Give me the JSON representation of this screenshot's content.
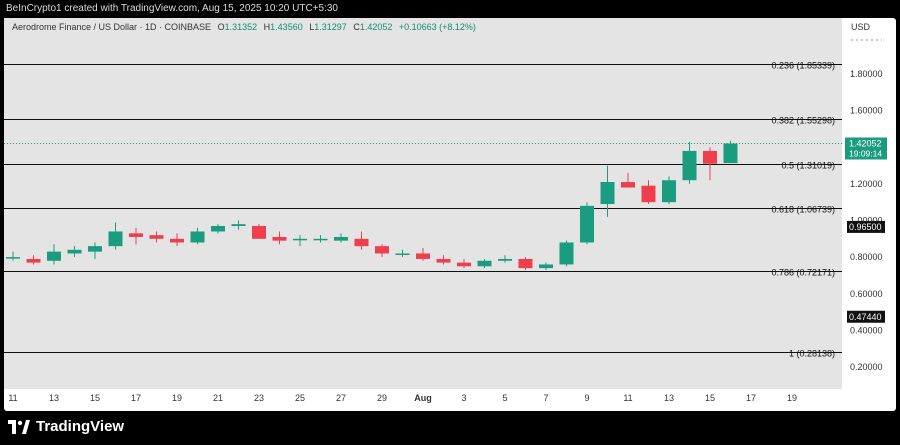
{
  "header": {
    "created_by": "BeInCrypto1 created with TradingView.com, Aug 15, 2025 10:20 UTC+5:30"
  },
  "legend": {
    "symbol": "Aerodrome Finance / US Dollar · 1D · COINBASE",
    "o_label": "O",
    "o_value": "1.31352",
    "h_label": "H",
    "h_value": "1.43560",
    "l_label": "L",
    "l_value": "1.31297",
    "c_label": "C",
    "c_value": "1.42052",
    "change": "+0.10663 (+8.12%)"
  },
  "axis": {
    "currency": "USD",
    "price_ticks": [
      "1.80000",
      "1.60000",
      "1.40000",
      "1.20000",
      "1.00000",
      "0.80000",
      "0.60000",
      "0.40000",
      "0.20000"
    ],
    "price_tick_values": [
      1.8,
      1.6,
      1.4,
      1.2,
      1.0,
      0.8,
      0.6,
      0.4,
      0.2
    ],
    "time_ticks": [
      "11",
      "13",
      "15",
      "17",
      "19",
      "21",
      "23",
      "25",
      "27",
      "29",
      "Aug",
      "3",
      "5",
      "7",
      "9",
      "11",
      "13",
      "15",
      "17",
      "19"
    ],
    "last_price_label": "1.42052",
    "countdown": "19:09:14",
    "hline_labels": [
      {
        "price": 0.965,
        "label": "0.96500"
      },
      {
        "price": 0.4744,
        "label": "0.47440"
      }
    ]
  },
  "fib_levels": [
    {
      "price": 1.85339,
      "label": "0.236 (1.85339)"
    },
    {
      "price": 1.55298,
      "label": "0.382 (1.55298)"
    },
    {
      "price": 1.31019,
      "label": "0.5 (1.31019)"
    },
    {
      "price": 1.06739,
      "label": "0.618 (1.06739)"
    },
    {
      "price": 0.72171,
      "label": "0.786 (0.72171)"
    },
    {
      "price": 0.28138,
      "label": "1 (0.28138)"
    }
  ],
  "colors": {
    "up": "#1a9c7e",
    "down": "#ef3f4f",
    "plot_bg": "#e4e4e4"
  },
  "chart_data": {
    "type": "candlestick",
    "candles": [
      {
        "o": 0.8,
        "h": 0.83,
        "l": 0.78,
        "c": 0.8
      },
      {
        "o": 0.79,
        "h": 0.81,
        "l": 0.76,
        "c": 0.77
      },
      {
        "o": 0.78,
        "h": 0.87,
        "l": 0.76,
        "c": 0.83
      },
      {
        "o": 0.82,
        "h": 0.86,
        "l": 0.8,
        "c": 0.84
      },
      {
        "o": 0.83,
        "h": 0.88,
        "l": 0.79,
        "c": 0.86
      },
      {
        "o": 0.86,
        "h": 0.99,
        "l": 0.84,
        "c": 0.94
      },
      {
        "o": 0.93,
        "h": 0.96,
        "l": 0.87,
        "c": 0.91
      },
      {
        "o": 0.92,
        "h": 0.94,
        "l": 0.88,
        "c": 0.9
      },
      {
        "o": 0.9,
        "h": 0.93,
        "l": 0.86,
        "c": 0.88
      },
      {
        "o": 0.88,
        "h": 0.96,
        "l": 0.87,
        "c": 0.94
      },
      {
        "o": 0.94,
        "h": 0.98,
        "l": 0.93,
        "c": 0.97
      },
      {
        "o": 0.97,
        "h": 1.0,
        "l": 0.95,
        "c": 0.98
      },
      {
        "o": 0.97,
        "h": 0.98,
        "l": 0.9,
        "c": 0.9
      },
      {
        "o": 0.91,
        "h": 0.94,
        "l": 0.87,
        "c": 0.89
      },
      {
        "o": 0.9,
        "h": 0.92,
        "l": 0.86,
        "c": 0.9
      },
      {
        "o": 0.9,
        "h": 0.92,
        "l": 0.88,
        "c": 0.9
      },
      {
        "o": 0.89,
        "h": 0.93,
        "l": 0.88,
        "c": 0.91
      },
      {
        "o": 0.9,
        "h": 0.94,
        "l": 0.84,
        "c": 0.86
      },
      {
        "o": 0.86,
        "h": 0.87,
        "l": 0.8,
        "c": 0.82
      },
      {
        "o": 0.82,
        "h": 0.84,
        "l": 0.8,
        "c": 0.82
      },
      {
        "o": 0.82,
        "h": 0.85,
        "l": 0.78,
        "c": 0.79
      },
      {
        "o": 0.79,
        "h": 0.81,
        "l": 0.76,
        "c": 0.77
      },
      {
        "o": 0.77,
        "h": 0.79,
        "l": 0.74,
        "c": 0.75
      },
      {
        "o": 0.75,
        "h": 0.79,
        "l": 0.74,
        "c": 0.78
      },
      {
        "o": 0.78,
        "h": 0.81,
        "l": 0.77,
        "c": 0.79
      },
      {
        "o": 0.79,
        "h": 0.8,
        "l": 0.73,
        "c": 0.74
      },
      {
        "o": 0.74,
        "h": 0.77,
        "l": 0.73,
        "c": 0.76
      },
      {
        "o": 0.76,
        "h": 0.89,
        "l": 0.75,
        "c": 0.88
      },
      {
        "o": 0.88,
        "h": 1.1,
        "l": 0.87,
        "c": 1.08
      },
      {
        "o": 1.09,
        "h": 1.3,
        "l": 1.02,
        "c": 1.21
      },
      {
        "o": 1.21,
        "h": 1.26,
        "l": 1.18,
        "c": 1.18
      },
      {
        "o": 1.19,
        "h": 1.22,
        "l": 1.09,
        "c": 1.1
      },
      {
        "o": 1.1,
        "h": 1.24,
        "l": 1.09,
        "c": 1.22
      },
      {
        "o": 1.22,
        "h": 1.43,
        "l": 1.2,
        "c": 1.38
      },
      {
        "o": 1.38,
        "h": 1.4,
        "l": 1.22,
        "c": 1.31
      },
      {
        "o": 1.31352,
        "h": 1.4356,
        "l": 1.31297,
        "c": 1.42052
      }
    ]
  }
}
